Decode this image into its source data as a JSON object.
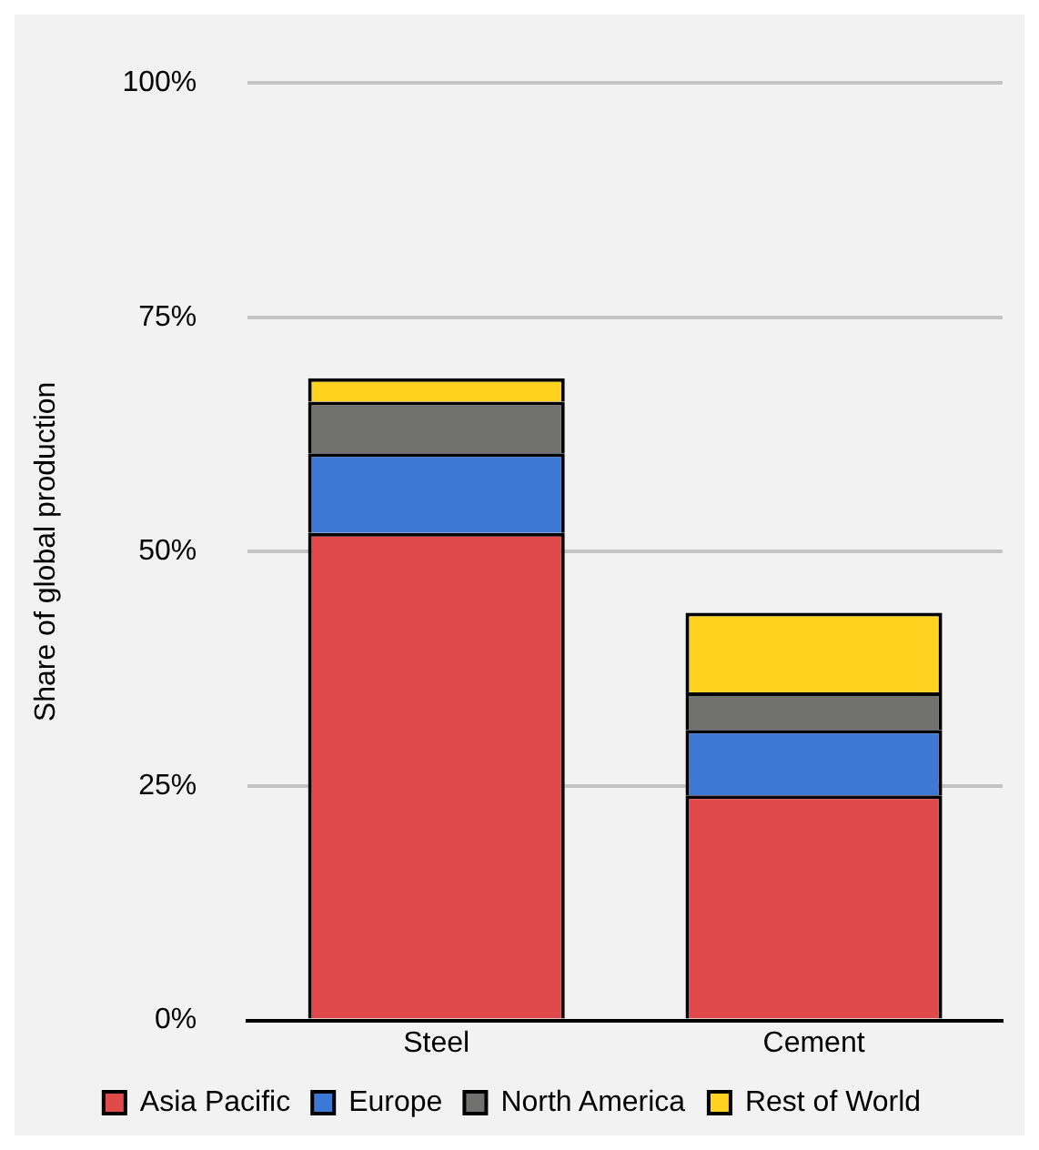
{
  "chart_data": {
    "type": "bar",
    "stacked": true,
    "ylabel": "Share of global production",
    "categories": [
      "Steel",
      "Cement"
    ],
    "series": [
      {
        "name": "Asia Pacific",
        "color": "#e04a4a",
        "values": [
          52,
          24
        ]
      },
      {
        "name": "Europe",
        "color": "#3c78d4",
        "values": [
          8.5,
          7
        ]
      },
      {
        "name": "North America",
        "color": "#717270",
        "values": [
          5.5,
          4
        ]
      },
      {
        "name": "Rest of World",
        "color": "#ffd21f",
        "values": [
          2.5,
          8.5
        ]
      }
    ],
    "ylim": [
      0,
      100
    ],
    "yticks": [
      {
        "value": 0,
        "label": "0%"
      },
      {
        "value": 25,
        "label": "25%"
      },
      {
        "value": 50,
        "label": "50%"
      },
      {
        "value": 75,
        "label": "75%"
      },
      {
        "value": 100,
        "label": "100%"
      }
    ],
    "grid": "y",
    "legend": "bottom"
  }
}
